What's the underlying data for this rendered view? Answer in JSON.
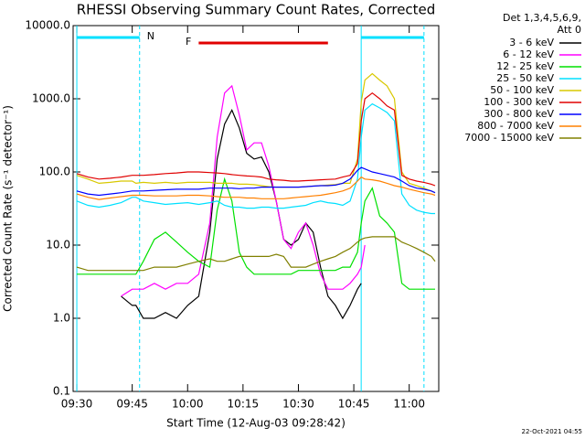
{
  "chart_data": {
    "type": "line",
    "title": "RHESSI Observing Summary Count Rates, Corrected",
    "x_label": "Start Time (12-Aug-03 09:28:42)",
    "y_label": "Corrected Count Rate (s⁻¹ detector⁻¹)",
    "legend_header": [
      "Det 1,3,4,5,6,9,",
      "Att 0"
    ],
    "footer": "22-Oct-2021 04:55",
    "log_y": true,
    "ylim": [
      0.1,
      10000
    ],
    "yticks": [
      {
        "value": 0.1,
        "label": "0.1"
      },
      {
        "value": 1,
        "label": "1.0"
      },
      {
        "value": 10,
        "label": "10.0"
      },
      {
        "value": 100,
        "label": "100.0"
      },
      {
        "value": 1000,
        "label": "1000.0"
      },
      {
        "value": 10000,
        "label": "10000.0"
      }
    ],
    "xlim": [
      "09:29",
      "11:08"
    ],
    "xticks": [
      "09:30",
      "09:45",
      "10:00",
      "10:15",
      "10:30",
      "10:45",
      "11:00"
    ],
    "night_label": "N",
    "night_color": "#00e0ff",
    "night_intervals": [
      [
        "09:30",
        "09:47"
      ],
      [
        "10:47",
        "11:04"
      ]
    ],
    "flare_label": "F",
    "flare_color": "#e00000",
    "flare_interval": [
      "10:03",
      "10:38"
    ],
    "x": [
      "09:30",
      "09:33",
      "09:36",
      "09:39",
      "09:42",
      "09:45",
      "09:46",
      "09:48",
      "09:51",
      "09:54",
      "09:57",
      "10:00",
      "10:03",
      "10:06",
      "10:08",
      "10:10",
      "10:12",
      "10:14",
      "10:16",
      "10:18",
      "10:20",
      "10:22",
      "10:24",
      "10:26",
      "10:28",
      "10:30",
      "10:32",
      "10:34",
      "10:36",
      "10:38",
      "10:40",
      "10:42",
      "10:44",
      "10:46",
      "10:47",
      "10:48",
      "10:50",
      "10:52",
      "10:54",
      "10:56",
      "10:58",
      "11:00",
      "11:02",
      "11:04",
      "11:06",
      "11:07"
    ],
    "series": [
      {
        "name": "3 - 6 keV",
        "color": "#000000",
        "values": [
          null,
          null,
          null,
          null,
          2,
          1.5,
          1.5,
          1.0,
          1.0,
          1.2,
          1.0,
          1.5,
          2,
          15,
          150,
          450,
          700,
          400,
          180,
          150,
          160,
          100,
          40,
          12,
          10,
          12,
          20,
          15,
          5,
          2,
          1.5,
          1.0,
          1.5,
          2.5,
          3,
          null,
          null,
          null,
          null,
          null,
          null,
          null,
          null,
          null,
          null,
          null
        ]
      },
      {
        "name": "6 - 12 keV",
        "color": "#ff00ff",
        "values": [
          null,
          null,
          null,
          null,
          2,
          2.5,
          2.5,
          2.5,
          3,
          2.5,
          3,
          3,
          4,
          20,
          300,
          1200,
          1500,
          600,
          200,
          250,
          250,
          120,
          40,
          12,
          9,
          15,
          20,
          10,
          4,
          2.5,
          2.5,
          2.5,
          3,
          4,
          5,
          10,
          null,
          null,
          null,
          null,
          null,
          null,
          null,
          null,
          null,
          null
        ]
      },
      {
        "name": "12 - 25 keV",
        "color": "#00e000",
        "values": [
          4,
          4,
          4,
          4,
          4,
          4,
          4,
          6,
          12,
          15,
          11,
          8,
          6,
          5,
          30,
          80,
          40,
          8,
          5,
          4,
          4,
          4,
          4,
          4,
          4,
          4.5,
          4.5,
          4.5,
          4.5,
          4.5,
          4.5,
          5,
          5,
          8,
          20,
          40,
          60,
          25,
          20,
          15,
          3,
          2.5,
          2.5,
          2.5,
          2.5,
          2.5
        ]
      },
      {
        "name": "25 - 50 keV",
        "color": "#00e0ff",
        "values": [
          40,
          35,
          33,
          35,
          38,
          45,
          45,
          40,
          38,
          36,
          37,
          38,
          36,
          38,
          40,
          35,
          33,
          33,
          32,
          32,
          33,
          33,
          32,
          32,
          33,
          34,
          35,
          38,
          40,
          38,
          37,
          35,
          40,
          80,
          300,
          700,
          850,
          750,
          650,
          500,
          50,
          35,
          30,
          28,
          27,
          27
        ]
      },
      {
        "name": "50 - 100 keV",
        "color": "#d8c800",
        "values": [
          90,
          80,
          70,
          72,
          75,
          75,
          70,
          72,
          70,
          72,
          70,
          72,
          72,
          72,
          70,
          70,
          70,
          68,
          68,
          67,
          65,
          63,
          62,
          62,
          62,
          62,
          63,
          64,
          65,
          66,
          67,
          70,
          70,
          150,
          900,
          1800,
          2200,
          1800,
          1500,
          1000,
          100,
          70,
          65,
          60,
          55,
          52
        ]
      },
      {
        "name": "100 - 300 keV",
        "color": "#e00000",
        "values": [
          95,
          85,
          80,
          82,
          85,
          90,
          90,
          90,
          92,
          95,
          97,
          100,
          100,
          98,
          97,
          95,
          92,
          90,
          88,
          87,
          85,
          80,
          78,
          77,
          75,
          75,
          76,
          77,
          78,
          79,
          80,
          85,
          90,
          130,
          500,
          1000,
          1200,
          1000,
          800,
          700,
          90,
          80,
          75,
          72,
          68,
          65
        ]
      },
      {
        "name": "300 - 800 keV",
        "color": "#0000ff",
        "values": [
          55,
          50,
          48,
          50,
          52,
          55,
          55,
          55,
          56,
          57,
          58,
          58,
          58,
          60,
          60,
          60,
          60,
          59,
          60,
          60,
          62,
          62,
          62,
          62,
          62,
          62,
          63,
          64,
          65,
          65,
          66,
          70,
          80,
          105,
          115,
          110,
          100,
          95,
          90,
          85,
          75,
          65,
          60,
          58,
          55,
          52
        ]
      },
      {
        "name": "800 - 7000 keV",
        "color": "#ff8000",
        "values": [
          50,
          45,
          42,
          44,
          46,
          48,
          48,
          48,
          47,
          47,
          47,
          48,
          48,
          47,
          46,
          45,
          45,
          45,
          44,
          44,
          43,
          43,
          43,
          43,
          44,
          45,
          46,
          47,
          48,
          50,
          52,
          55,
          60,
          75,
          85,
          80,
          78,
          75,
          70,
          65,
          62,
          58,
          55,
          52,
          50,
          48
        ]
      },
      {
        "name": "7000 - 15000 keV",
        "color": "#808000",
        "values": [
          5,
          4.5,
          4.5,
          4.5,
          4.5,
          4.5,
          4.5,
          4.5,
          5,
          5,
          5,
          5.5,
          6,
          6.5,
          6,
          6,
          6.5,
          7,
          7,
          7,
          7,
          7,
          7.5,
          7,
          5,
          5,
          5,
          5.5,
          6,
          6.5,
          7,
          8,
          9,
          11,
          12,
          12.5,
          13,
          13,
          13,
          13,
          11,
          10,
          9,
          8,
          7,
          6
        ]
      }
    ]
  }
}
